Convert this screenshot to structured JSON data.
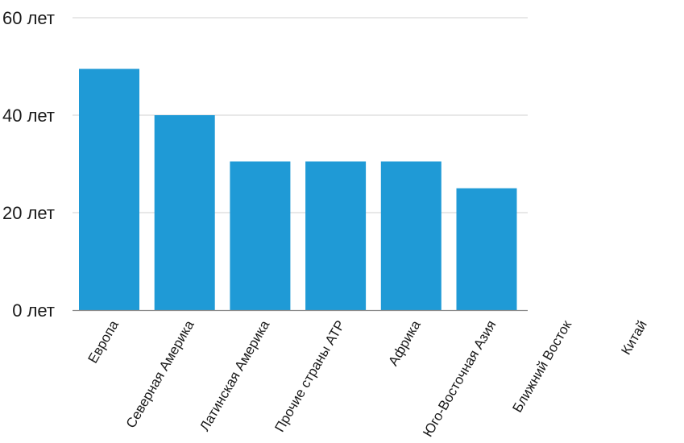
{
  "chart_data": {
    "type": "bar",
    "title": "",
    "xlabel": "",
    "ylabel": "",
    "categories": [
      "Европа",
      "Северная Америка",
      "Латинская Америка",
      "Прочие страны АТР",
      "Африка",
      "Юго-Восточная Азия",
      "Ближний Восток",
      "Китай"
    ],
    "values": [
      49.5,
      40,
      30.5,
      30.5,
      30.5,
      25,
      null,
      null
    ],
    "ylim": [
      0,
      60
    ],
    "yticks": [
      0,
      20,
      40,
      60
    ],
    "ytick_labels": [
      "0 лет",
      "20 лет",
      "40 лет",
      "60 лет"
    ],
    "grid": true,
    "bar_color": "#1f9ad6"
  }
}
